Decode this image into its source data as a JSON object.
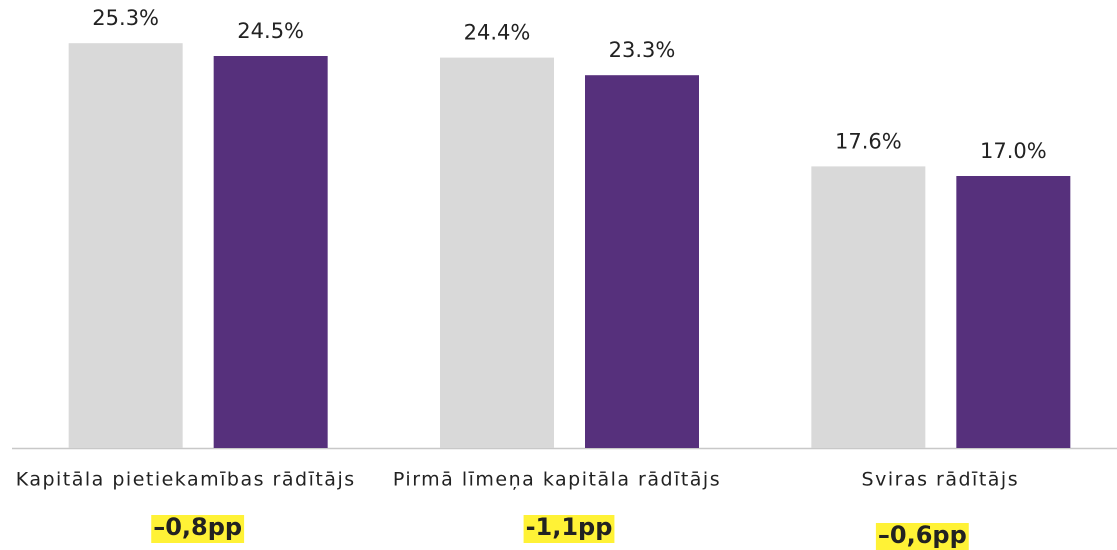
{
  "chart_data": {
    "type": "bar",
    "categories": [
      "Kapitāla pietiekamības rādītājs",
      "Pirmā līmeņa kapitāla rādītājs",
      "Sviras rādītājs"
    ],
    "series": [
      {
        "color": "#d9d9d9",
        "values": [
          25.3,
          24.4,
          17.6
        ],
        "value_labels": [
          "25.3%",
          "24.4%",
          "17.6%"
        ]
      },
      {
        "color": "#56307c",
        "values": [
          24.5,
          23.3,
          17.0
        ],
        "value_labels": [
          "24.5%",
          "23.3%",
          "17.0%"
        ]
      }
    ],
    "annotations": [
      "–0,8pp",
      "-1,1pp",
      "–0,6pp"
    ],
    "annotation_color": "#fff236",
    "ylim": [
      0,
      28
    ],
    "grid": false
  }
}
